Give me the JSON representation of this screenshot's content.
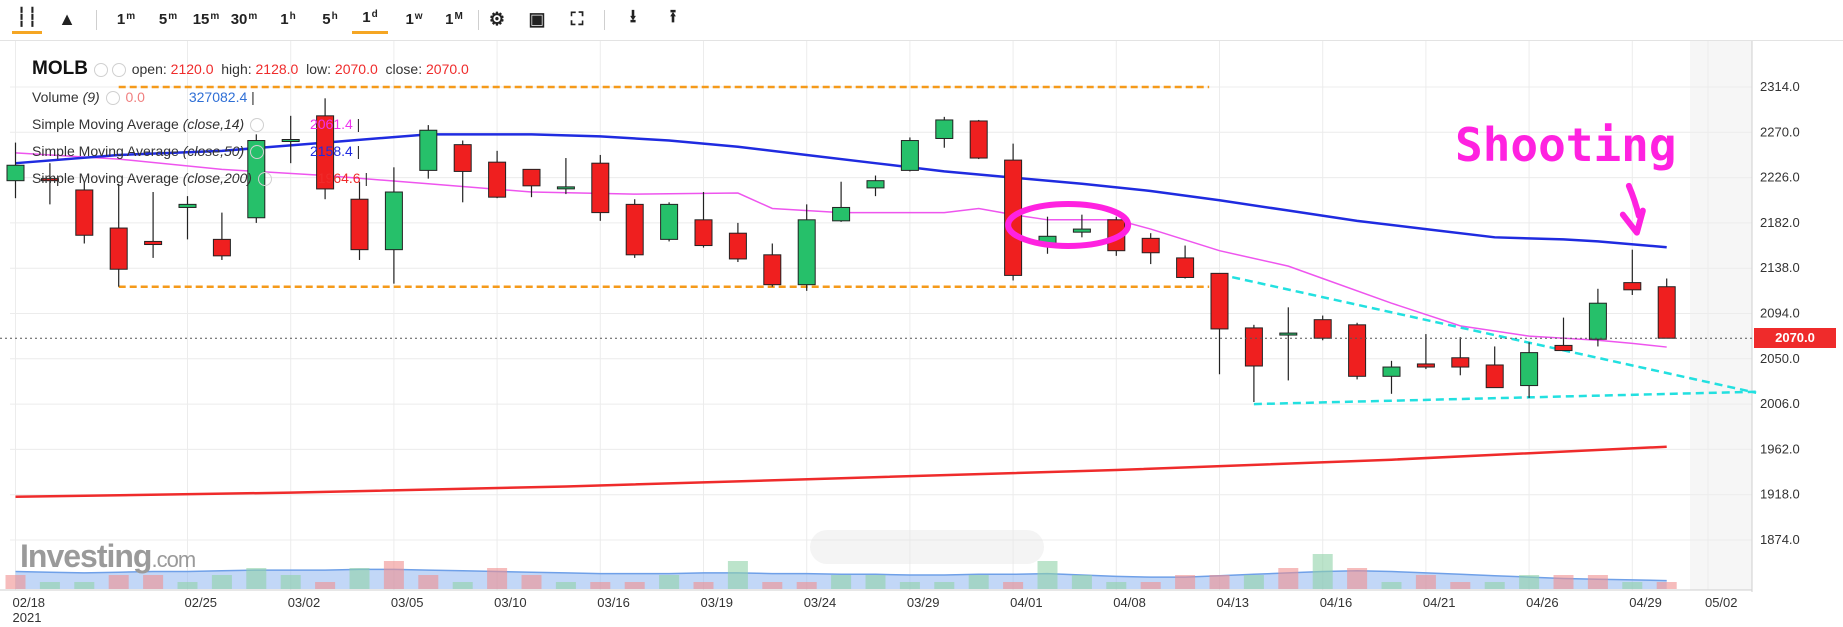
{
  "toolbar": {
    "timeframes": [
      "1m",
      "5m",
      "15m",
      "30m",
      "1h",
      "5h",
      "1d",
      "1w",
      "1M"
    ],
    "active_timeframe": "1d",
    "icons": [
      "candles-icon",
      "mountain-icon",
      "gear-icon",
      "camera-icon",
      "fullscreen-icon",
      "download-icon",
      "upload-icon"
    ]
  },
  "legend": {
    "symbol": "MOLB",
    "open_label": "open:",
    "open": "2120.0",
    "high_label": "high:",
    "high": "2128.0",
    "low_label": "low:",
    "low": "2070.0",
    "close_label": "close:",
    "close": "2070.0",
    "volume_label": "Volume",
    "volume_param": "(9)",
    "volume_val": "0.0",
    "volume_avg": "327082.4",
    "sma14_label": "Simple Moving Average",
    "sma14_param": "(close,14)",
    "sma14_val": "2061.4",
    "sma50_label": "Simple Moving Average",
    "sma50_param": "(close,50)",
    "sma50_val": "2158.4",
    "sma200_label": "Simple Moving Average",
    "sma200_param": "(close,200)",
    "sma200_val": "1964.6"
  },
  "last_price_tag": "2070.0",
  "annotation_text": "Shooting",
  "logo_text": "Investing",
  "logo_suffix": ".com",
  "colors": {
    "up": "#26c06a",
    "down": "#ef1f1f",
    "sma14": "#ee55ee",
    "sma50": "#1f2be0",
    "sma200": "#ef2b2b",
    "resistance": "#f59a1a",
    "wedge": "#22e0e0",
    "annotation": "#ff22e0",
    "volume_area": "#8fb6f0"
  },
  "chart_data": {
    "type": "candlestick",
    "symbol": "MOLB",
    "y_ticks": [
      2314.0,
      2270.0,
      2226.0,
      2182.0,
      2138.0,
      2094.0,
      2050.0,
      2006.0,
      1962.0,
      1918.0,
      1874.0
    ],
    "y_range": [
      1830,
      2360
    ],
    "x_ticks": [
      {
        "label": "02/18",
        "index": 0,
        "sub": "2021"
      },
      {
        "label": "02/25",
        "index": 5
      },
      {
        "label": "03/02",
        "index": 8
      },
      {
        "label": "03/05",
        "index": 11
      },
      {
        "label": "03/10",
        "index": 14
      },
      {
        "label": "03/16",
        "index": 17
      },
      {
        "label": "03/19",
        "index": 20
      },
      {
        "label": "03/24",
        "index": 23
      },
      {
        "label": "03/29",
        "index": 26
      },
      {
        "label": "04/01",
        "index": 29
      },
      {
        "label": "04/08",
        "index": 32
      },
      {
        "label": "04/13",
        "index": 35
      },
      {
        "label": "04/16",
        "index": 38
      },
      {
        "label": "04/21",
        "index": 41
      },
      {
        "label": "04/26",
        "index": 44
      },
      {
        "label": "04/29",
        "index": 47
      },
      {
        "label": "05/02",
        "index": 49.2
      }
    ],
    "candles": [
      {
        "o": 2223,
        "h": 2260,
        "l": 2206,
        "c": 2238
      },
      {
        "o": 2225,
        "h": 2240,
        "l": 2200,
        "c": 2223
      },
      {
        "o": 2214,
        "h": 2222,
        "l": 2162,
        "c": 2170
      },
      {
        "o": 2177,
        "h": 2220,
        "l": 2120,
        "c": 2137
      },
      {
        "o": 2164,
        "h": 2212,
        "l": 2148,
        "c": 2161
      },
      {
        "o": 2197,
        "h": 2208,
        "l": 2166,
        "c": 2200
      },
      {
        "o": 2166,
        "h": 2192,
        "l": 2146,
        "c": 2150
      },
      {
        "o": 2187,
        "h": 2268,
        "l": 2182,
        "c": 2262
      },
      {
        "o": 2262,
        "h": 2286,
        "l": 2240,
        "c": 2263
      },
      {
        "o": 2286,
        "h": 2303,
        "l": 2205,
        "c": 2215
      },
      {
        "o": 2205,
        "h": 2222,
        "l": 2146,
        "c": 2156
      },
      {
        "o": 2156,
        "h": 2236,
        "l": 2123,
        "c": 2212
      },
      {
        "o": 2233,
        "h": 2277,
        "l": 2225,
        "c": 2272
      },
      {
        "o": 2258,
        "h": 2262,
        "l": 2202,
        "c": 2232
      },
      {
        "o": 2241,
        "h": 2252,
        "l": 2206,
        "c": 2207
      },
      {
        "o": 2234,
        "h": 2234,
        "l": 2207,
        "c": 2218
      },
      {
        "o": 2217,
        "h": 2245,
        "l": 2210,
        "c": 2217
      },
      {
        "o": 2240,
        "h": 2248,
        "l": 2184,
        "c": 2192
      },
      {
        "o": 2200,
        "h": 2205,
        "l": 2148,
        "c": 2151
      },
      {
        "o": 2166,
        "h": 2202,
        "l": 2164,
        "c": 2200
      },
      {
        "o": 2185,
        "h": 2212,
        "l": 2158,
        "c": 2160
      },
      {
        "o": 2172,
        "h": 2182,
        "l": 2144,
        "c": 2147
      },
      {
        "o": 2151,
        "h": 2162,
        "l": 2120,
        "c": 2122
      },
      {
        "o": 2122,
        "h": 2200,
        "l": 2116,
        "c": 2185
      },
      {
        "o": 2184,
        "h": 2222,
        "l": 2183,
        "c": 2197
      },
      {
        "o": 2216,
        "h": 2228,
        "l": 2208,
        "c": 2223
      },
      {
        "o": 2233,
        "h": 2265,
        "l": 2232,
        "c": 2262
      },
      {
        "o": 2264,
        "h": 2285,
        "l": 2255,
        "c": 2282
      },
      {
        "o": 2281,
        "h": 2282,
        "l": 2244,
        "c": 2245
      },
      {
        "o": 2243,
        "h": 2259,
        "l": 2126,
        "c": 2131
      },
      {
        "o": 2160,
        "h": 2188,
        "l": 2152,
        "c": 2169
      },
      {
        "o": 2173,
        "h": 2190,
        "l": 2168,
        "c": 2176
      },
      {
        "o": 2185,
        "h": 2188,
        "l": 2150,
        "c": 2155
      },
      {
        "o": 2167,
        "h": 2172,
        "l": 2142,
        "c": 2153
      },
      {
        "o": 2148,
        "h": 2160,
        "l": 2128,
        "c": 2129
      },
      {
        "o": 2133,
        "h": 2133,
        "l": 2035,
        "c": 2079
      },
      {
        "o": 2080,
        "h": 2083,
        "l": 2008,
        "c": 2043
      },
      {
        "o": 2075,
        "h": 2100,
        "l": 2029,
        "c": 2075
      },
      {
        "o": 2088,
        "h": 2092,
        "l": 2068,
        "c": 2070
      },
      {
        "o": 2083,
        "h": 2085,
        "l": 2030,
        "c": 2033
      },
      {
        "o": 2033,
        "h": 2048,
        "l": 2016,
        "c": 2042
      },
      {
        "o": 2045,
        "h": 2074,
        "l": 2040,
        "c": 2042
      },
      {
        "o": 2051,
        "h": 2071,
        "l": 2034,
        "c": 2042
      },
      {
        "o": 2044,
        "h": 2062,
        "l": 2022,
        "c": 2022
      },
      {
        "o": 2024,
        "h": 2066,
        "l": 2012,
        "c": 2056
      },
      {
        "o": 2063,
        "h": 2090,
        "l": 2059,
        "c": 2058
      },
      {
        "o": 2069,
        "h": 2118,
        "l": 2062,
        "c": 2104
      },
      {
        "o": 2124,
        "h": 2156,
        "l": 2112,
        "c": 2117
      },
      {
        "o": 2120,
        "h": 2128,
        "l": 2070,
        "c": 2070
      }
    ],
    "sma14": [
      [
        0,
        2250
      ],
      [
        3,
        2244
      ],
      [
        6,
        2234
      ],
      [
        9,
        2228
      ],
      [
        12,
        2220
      ],
      [
        15,
        2212
      ],
      [
        18,
        2210
      ],
      [
        21,
        2211
      ],
      [
        22,
        2196
      ],
      [
        24,
        2192
      ],
      [
        27,
        2192
      ],
      [
        28,
        2196
      ],
      [
        29,
        2190
      ],
      [
        30,
        2185
      ],
      [
        32,
        2185
      ],
      [
        33,
        2176
      ],
      [
        35,
        2155
      ],
      [
        37,
        2140
      ],
      [
        38,
        2128
      ],
      [
        40,
        2104
      ],
      [
        42,
        2082
      ],
      [
        44,
        2072
      ],
      [
        46,
        2068
      ],
      [
        47,
        2065
      ],
      [
        48,
        2061.4
      ]
    ],
    "sma50": [
      [
        0,
        2240
      ],
      [
        3,
        2248
      ],
      [
        6,
        2252
      ],
      [
        9,
        2260
      ],
      [
        12,
        2268
      ],
      [
        15,
        2268
      ],
      [
        17,
        2266
      ],
      [
        19,
        2262
      ],
      [
        21,
        2256
      ],
      [
        23,
        2248
      ],
      [
        25,
        2240
      ],
      [
        27,
        2232
      ],
      [
        29,
        2226
      ],
      [
        31,
        2220
      ],
      [
        33,
        2213
      ],
      [
        35,
        2204
      ],
      [
        37,
        2194
      ],
      [
        39,
        2184
      ],
      [
        41,
        2176
      ],
      [
        43,
        2168
      ],
      [
        45,
        2166
      ],
      [
        46,
        2164
      ],
      [
        48,
        2158.4
      ]
    ],
    "sma200": [
      [
        0,
        1916
      ],
      [
        8,
        1920
      ],
      [
        16,
        1926
      ],
      [
        24,
        1934
      ],
      [
        32,
        1942
      ],
      [
        40,
        1952
      ],
      [
        48,
        1964.6
      ]
    ],
    "volume": {
      "bar_scale_max": 10,
      "bars": [
        2,
        1,
        1,
        2,
        2,
        1,
        2,
        3,
        2,
        1,
        3,
        4,
        2,
        1,
        3,
        2,
        1,
        1,
        1,
        2,
        1,
        4,
        1,
        1,
        2,
        2,
        1,
        1,
        2,
        1,
        4,
        2,
        1,
        1,
        2,
        2,
        2,
        3,
        5,
        3,
        1,
        2,
        1,
        1,
        2,
        2,
        2,
        1,
        1
      ],
      "bar_dirs": [
        -1,
        1,
        1,
        -1,
        -1,
        1,
        1,
        1,
        1,
        -1,
        1,
        -1,
        -1,
        1,
        -1,
        -1,
        1,
        -1,
        -1,
        1,
        -1,
        1,
        -1,
        -1,
        1,
        1,
        1,
        1,
        1,
        -1,
        1,
        1,
        1,
        -1,
        -1,
        -1,
        1,
        -1,
        1,
        -1,
        1,
        -1,
        -1,
        1,
        1,
        -1,
        -1,
        1,
        -1
      ],
      "avg": [
        2.5,
        2.4,
        2.3,
        2.4,
        2.5,
        2.5,
        2.6,
        2.7,
        2.7,
        2.7,
        2.8,
        2.8,
        2.7,
        2.6,
        2.5,
        2.4,
        2.3,
        2.2,
        2.2,
        2.2,
        2.3,
        2.3,
        2.2,
        2.2,
        2.1,
        2.1,
        2.0,
        2.0,
        2.1,
        2.1,
        2.2,
        2.0,
        1.8,
        1.7,
        1.7,
        1.9,
        2.1,
        2.3,
        2.5,
        2.6,
        2.5,
        2.3,
        2.1,
        1.9,
        1.7,
        1.5,
        1.4,
        1.3,
        1.2
      ]
    },
    "resistance": [
      {
        "from": 3,
        "to": 34.7,
        "value": 2314
      }
    ],
    "support": [
      {
        "from": 3,
        "to": 34.7,
        "value": 2120
      }
    ],
    "wedge_lines": [
      {
        "from": [
          35,
          2132
        ],
        "to": [
          50.6,
          2017
        ]
      },
      {
        "from": [
          36,
          2006
        ],
        "to": [
          50.6,
          2018
        ]
      }
    ],
    "last_price": 2070.0,
    "grid": true
  }
}
